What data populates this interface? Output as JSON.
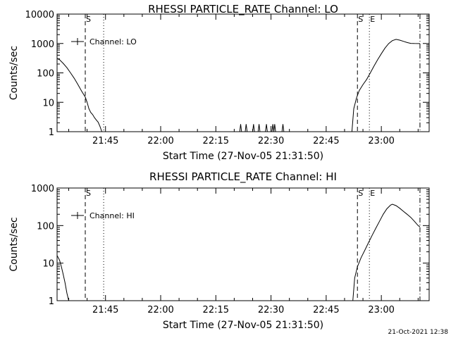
{
  "footer_timestamp": "21-Oct-2021 12:38",
  "chart_data": [
    {
      "type": "line",
      "title": "RHESSI PARTICLE_RATE Channel: LO",
      "xlabel": "Start Time (27-Nov-05 21:31:50)",
      "ylabel": "Counts/sec",
      "y_scale": "log",
      "ylim": [
        1,
        10000
      ],
      "yticks": [
        {
          "value": 1,
          "label": "1"
        },
        {
          "value": 10,
          "label": "10"
        },
        {
          "value": 100,
          "label": "100"
        },
        {
          "value": 1000,
          "label": "1000"
        },
        {
          "value": 10000,
          "label": "10000"
        }
      ],
      "xlim": [
        "21:31:50",
        "23:13:00"
      ],
      "xticks": [
        {
          "value": "21:45",
          "label": "21:45"
        },
        {
          "value": "22:00",
          "label": "22:00"
        },
        {
          "value": "22:15",
          "label": "22:15"
        },
        {
          "value": "22:30",
          "label": "22:30"
        },
        {
          "value": "22:45",
          "label": "22:45"
        },
        {
          "value": "23:00",
          "label": "23:00"
        }
      ],
      "legend": "Channel: LO",
      "legend_position": "top-left",
      "markers": [
        {
          "time": "21:39:30",
          "label": "S",
          "style": "dashed"
        },
        {
          "time": "21:44:30",
          "label": "",
          "style": "dotted"
        },
        {
          "time": "22:53:30",
          "label": "S",
          "style": "dashed"
        },
        {
          "time": "22:56:45",
          "label": "E",
          "style": "dotted"
        },
        {
          "time": "23:10:30",
          "label": "",
          "style": "dashdot"
        }
      ],
      "series": [
        {
          "segments": [
            [
              [
                "21:31:50",
                310
              ],
              [
                "21:32:30",
                280
              ],
              [
                "21:33:30",
                210
              ],
              [
                "21:34:30",
                150
              ],
              [
                "21:35:30",
                100
              ],
              [
                "21:36:30",
                65
              ],
              [
                "21:37:30",
                40
              ],
              [
                "21:38:30",
                24
              ],
              [
                "21:39:30",
                15
              ],
              [
                "21:40:00",
                10
              ],
              [
                "21:40:30",
                6
              ],
              [
                "21:41:00",
                4.5
              ],
              [
                "21:41:30",
                3.8
              ],
              [
                "21:42:00",
                3
              ],
              [
                "21:42:30",
                2.5
              ],
              [
                "21:43:00",
                2.1
              ],
              [
                "21:43:30",
                1.5
              ],
              [
                "21:44:00",
                1
              ]
            ],
            [
              [
                "22:21:30",
                1
              ],
              [
                "22:21:45",
                1.8
              ],
              [
                "22:22:00",
                1
              ]
            ],
            [
              [
                "22:23:00",
                1
              ],
              [
                "22:23:15",
                1.8
              ],
              [
                "22:23:30",
                1
              ]
            ],
            [
              [
                "22:25:00",
                1
              ],
              [
                "22:25:15",
                1.8
              ],
              [
                "22:25:30",
                1
              ]
            ],
            [
              [
                "22:26:30",
                1
              ],
              [
                "22:26:45",
                1.8
              ],
              [
                "22:27:00",
                1
              ]
            ],
            [
              [
                "22:28:30",
                1
              ],
              [
                "22:28:45",
                1.8
              ],
              [
                "22:29:00",
                1
              ]
            ],
            [
              [
                "22:30:15",
                1
              ],
              [
                "22:30:30",
                1.8
              ],
              [
                "22:30:45",
                1
              ],
              [
                "22:31:00",
                1.8
              ],
              [
                "22:31:15",
                1
              ]
            ],
            [
              [
                "22:33:00",
                1
              ],
              [
                "22:33:15",
                1.8
              ],
              [
                "22:33:30",
                1
              ]
            ],
            [
              [
                "22:52:00",
                1
              ],
              [
                "22:52:30",
                6
              ],
              [
                "22:53:15",
                14
              ],
              [
                "22:54:00",
                25
              ],
              [
                "22:55:00",
                40
              ],
              [
                "22:56:00",
                60
              ],
              [
                "22:57:00",
                100
              ],
              [
                "22:58:00",
                170
              ],
              [
                "22:59:00",
                280
              ],
              [
                "23:00:00",
                450
              ],
              [
                "23:01:00",
                700
              ],
              [
                "23:02:00",
                1000
              ],
              [
                "23:03:00",
                1250
              ],
              [
                "23:04:00",
                1380
              ],
              [
                "23:05:00",
                1300
              ],
              [
                "23:06:00",
                1180
              ],
              [
                "23:07:00",
                1080
              ],
              [
                "23:08:00",
                1010
              ],
              [
                "23:09:00",
                1000
              ],
              [
                "23:10:30",
                990
              ]
            ]
          ]
        }
      ]
    },
    {
      "type": "line",
      "title": "RHESSI PARTICLE_RATE Channel: HI",
      "xlabel": "Start Time (27-Nov-05 21:31:50)",
      "ylabel": "Counts/sec",
      "y_scale": "log",
      "ylim": [
        1,
        1000
      ],
      "yticks": [
        {
          "value": 1,
          "label": "1"
        },
        {
          "value": 10,
          "label": "10"
        },
        {
          "value": 100,
          "label": "100"
        },
        {
          "value": 1000,
          "label": "1000"
        }
      ],
      "xlim": [
        "21:31:50",
        "23:13:00"
      ],
      "xticks": [
        {
          "value": "21:45",
          "label": "21:45"
        },
        {
          "value": "22:00",
          "label": "22:00"
        },
        {
          "value": "22:15",
          "label": "22:15"
        },
        {
          "value": "22:30",
          "label": "22:30"
        },
        {
          "value": "22:45",
          "label": "22:45"
        },
        {
          "value": "23:00",
          "label": "23:00"
        }
      ],
      "legend": "Channel: HI",
      "legend_position": "top-left",
      "markers": [
        {
          "time": "21:39:30",
          "label": "S",
          "style": "dashed"
        },
        {
          "time": "21:44:30",
          "label": "",
          "style": "dotted"
        },
        {
          "time": "22:53:30",
          "label": "S",
          "style": "dashed"
        },
        {
          "time": "22:56:45",
          "label": "E",
          "style": "dotted"
        },
        {
          "time": "23:10:30",
          "label": "",
          "style": "dashdot"
        }
      ],
      "series": [
        {
          "segments": [
            [
              [
                "21:31:50",
                16
              ],
              [
                "21:32:30",
                12
              ],
              [
                "21:33:00",
                8
              ],
              [
                "21:33:30",
                5
              ],
              [
                "21:34:00",
                3
              ],
              [
                "21:34:30",
                1.6
              ],
              [
                "21:35:00",
                1
              ]
            ],
            [
              [
                "22:52:15",
                1
              ],
              [
                "22:52:45",
                4
              ],
              [
                "22:53:30",
                8
              ],
              [
                "22:54:30",
                14
              ],
              [
                "22:55:30",
                22
              ],
              [
                "22:56:30",
                35
              ],
              [
                "22:57:30",
                55
              ],
              [
                "22:58:30",
                85
              ],
              [
                "22:59:30",
                130
              ],
              [
                "23:00:30",
                200
              ],
              [
                "23:01:30",
                280
              ],
              [
                "23:02:30",
                350
              ],
              [
                "23:03:00",
                370
              ],
              [
                "23:04:00",
                340
              ],
              [
                "23:05:00",
                290
              ],
              [
                "23:06:00",
                240
              ],
              [
                "23:07:00",
                200
              ],
              [
                "23:08:00",
                165
              ],
              [
                "23:09:00",
                130
              ],
              [
                "23:10:00",
                100
              ],
              [
                "23:10:30",
                92
              ]
            ]
          ]
        }
      ]
    }
  ]
}
